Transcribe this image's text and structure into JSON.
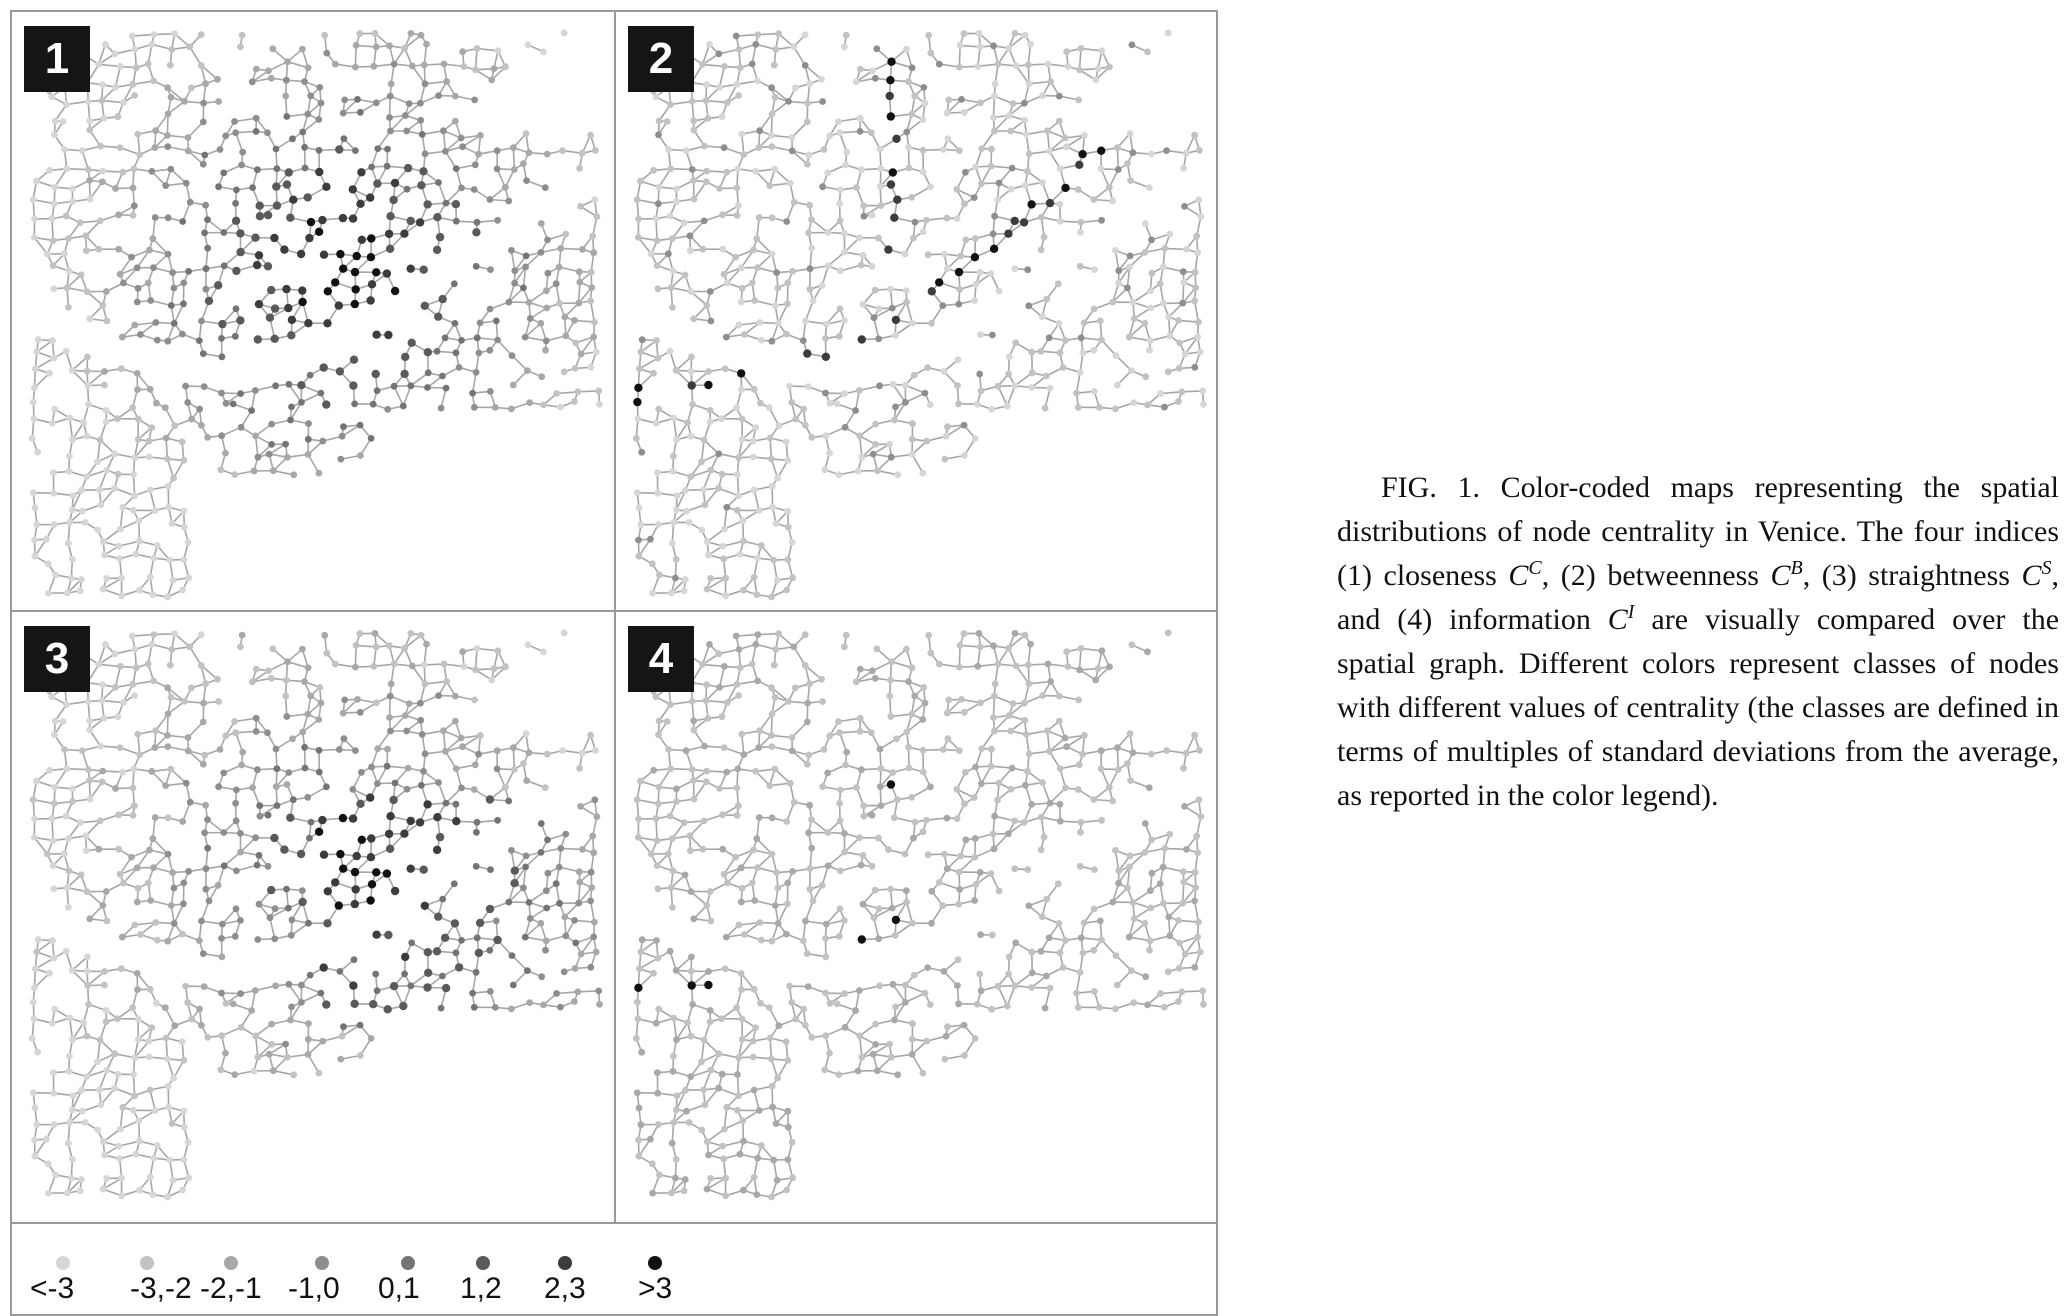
{
  "panels": [
    {
      "number": "1",
      "index": "closeness"
    },
    {
      "number": "2",
      "index": "betweenness"
    },
    {
      "number": "3",
      "index": "straightness"
    },
    {
      "number": "4",
      "index": "information"
    }
  ],
  "legend": {
    "items": [
      {
        "label": "<-3",
        "color": "#d6d6d6"
      },
      {
        "label": "-3,-2",
        "color": "#c2c2c2"
      },
      {
        "label": "-2,-1",
        "color": "#a8a8a8"
      },
      {
        "label": "-1,0",
        "color": "#8e8e8e"
      },
      {
        "label": "0,1",
        "color": "#747474"
      },
      {
        "label": "1,2",
        "color": "#5a5a5a"
      },
      {
        "label": "2,3",
        "color": "#3c3c3c"
      },
      {
        "label": ">3",
        "color": "#111111"
      }
    ]
  },
  "caption": {
    "lead": "FIG. 1. Color-coded maps representing the spatial distributions of node centrality in Venice. The four indices (1) closeness ",
    "sym1": "C",
    "sup1": "C",
    "t2": ", (2) between­ness ",
    "sym2": "C",
    "sup2": "B",
    "t3": ", (3) straightness ",
    "sym3": "C",
    "sup3": "S",
    "t4": ", and (4) information ",
    "sym4": "C",
    "sup4": "I",
    "t5": " are visually compared over the spatial graph. Different colors represent classes of nodes with different values of centrality (the classes are de­fined in terms of multiples of standard deviations from the average, as reported in the color legend)."
  },
  "colors": {
    "edge": "#a6a6a6",
    "frame": "#9a9a9a",
    "label_box": "#151515"
  }
}
